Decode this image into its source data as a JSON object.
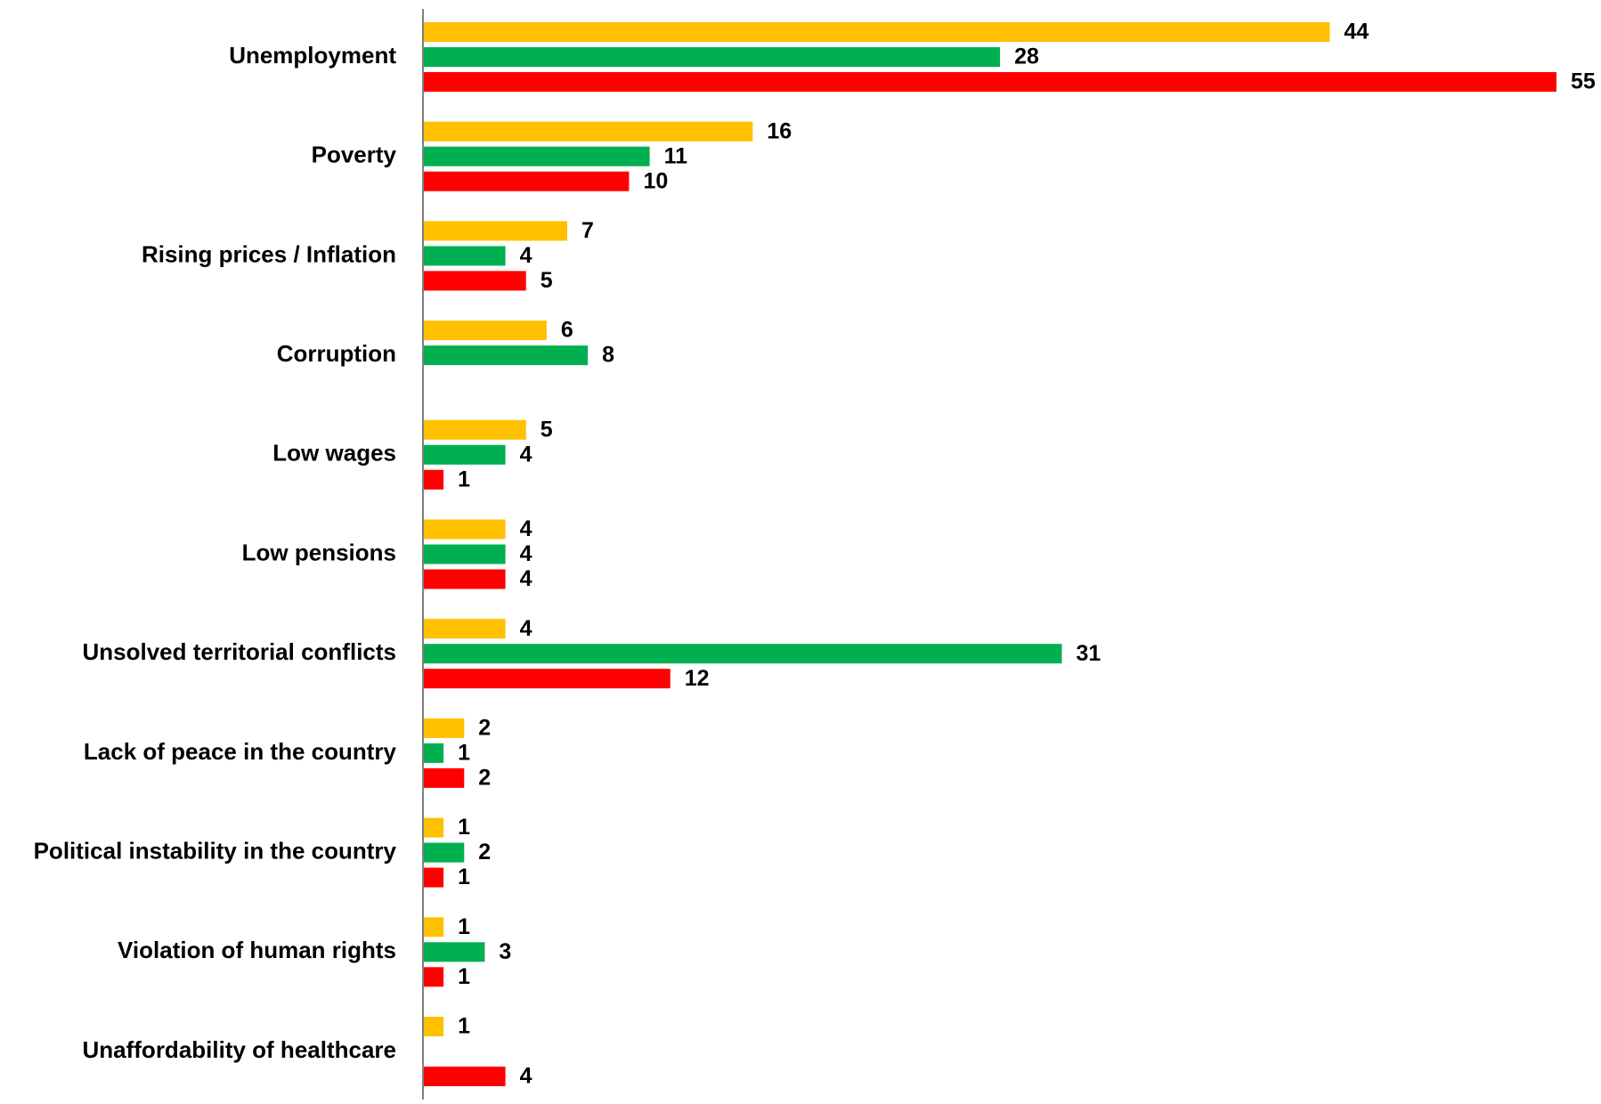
{
  "chart_data": {
    "type": "bar",
    "orientation": "horizontal",
    "categories": [
      "Unemployment",
      "Poverty",
      "Rising prices / Inflation",
      "Corruption",
      "Low wages",
      "Low pensions",
      "Unsolved territorial conflicts",
      "Lack of peace in the country",
      "Political instability in the country",
      "Violation of human rights",
      "Unaffordability of healthcare"
    ],
    "series": [
      {
        "color": "#FFC000",
        "values": [
          44,
          16,
          7,
          6,
          5,
          4,
          4,
          2,
          1,
          1,
          1
        ]
      },
      {
        "color": "#00B050",
        "values": [
          28,
          11,
          4,
          8,
          4,
          4,
          31,
          1,
          2,
          3,
          null
        ]
      },
      {
        "color": "#FF0000",
        "values": [
          55,
          10,
          5,
          null,
          1,
          4,
          12,
          2,
          1,
          1,
          4
        ]
      }
    ],
    "xlim": [
      0,
      55
    ],
    "grid": false,
    "legend": "none",
    "data_labels": true
  }
}
